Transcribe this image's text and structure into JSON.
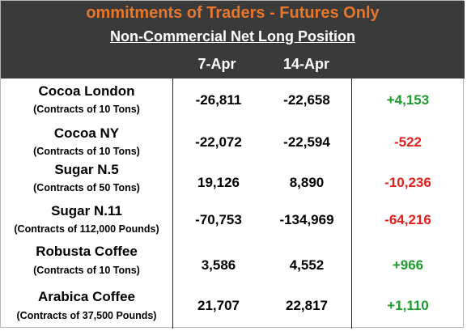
{
  "title": "ommitments of Traders - Futures Only",
  "subtitle": "Non-Commercial Net Long Position",
  "columns": [
    "7-Apr",
    "14-Apr"
  ],
  "colors": {
    "header_bg": "#3a3a3a",
    "title": "#e8762b",
    "positive": "#1e9b2a",
    "negative": "#e0201b"
  },
  "rows": [
    {
      "name": "Cocoa London",
      "unit": "(Contracts of 10 Tons)",
      "apr7": "-26,811",
      "apr14": "-22,658",
      "change": "+4,153"
    },
    {
      "name": "Cocoa NY",
      "unit": "(Contracts of 10 Tons)",
      "apr7": "-22,072",
      "apr14": "-22,594",
      "change": "-522"
    },
    {
      "name": "Sugar N.5",
      "unit": "(Contracts of 50 Tons)",
      "apr7": "19,126",
      "apr14": "8,890",
      "change": "-10,236"
    },
    {
      "name": "Sugar N.11",
      "unit": "(Contracts of 112,000 Pounds)",
      "apr7": "-70,753",
      "apr14": "-134,969",
      "change": "-64,216"
    },
    {
      "name": "Robusta Coffee",
      "unit": "(Contracts of 10 Tons)",
      "apr7": "3,586",
      "apr14": "4,552",
      "change": "+966"
    },
    {
      "name": "Arabica Coffee",
      "unit": "(Contracts of 37,500 Pounds)",
      "apr7": "21,707",
      "apr14": "22,817",
      "change": "+1,110"
    }
  ]
}
